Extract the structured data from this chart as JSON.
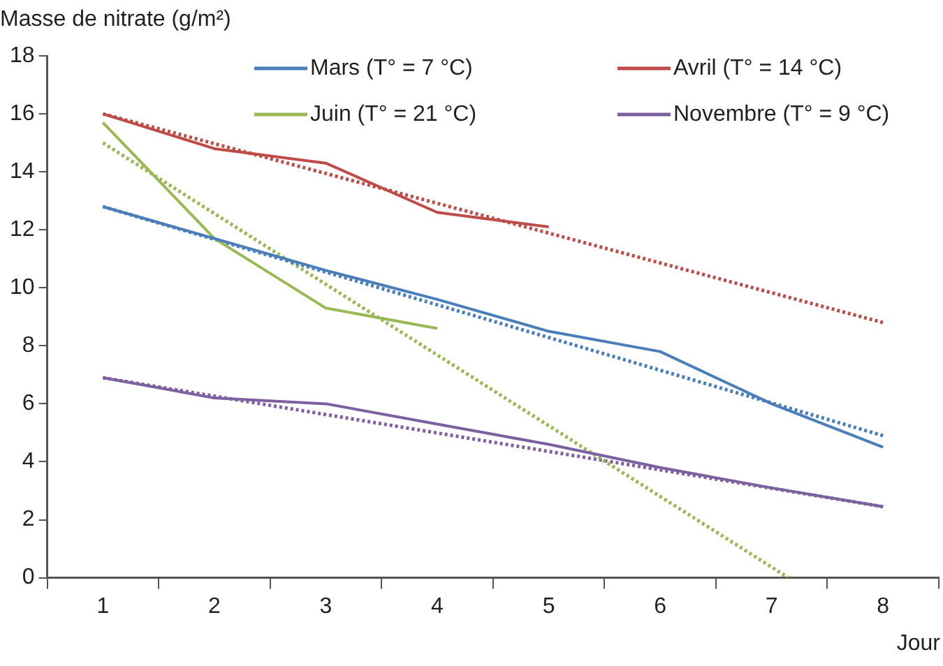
{
  "chart_data": {
    "type": "line",
    "ylabel": "Masse de nitrate (g/m²)",
    "xlabel": "Jour",
    "x": [
      1,
      2,
      3,
      4,
      5,
      6,
      7,
      8
    ],
    "xlim": [
      0.5,
      8.5
    ],
    "xticks": [
      {
        "value": 0.5,
        "label": null
      },
      1,
      {
        "value": 1.5,
        "label": null
      },
      2,
      {
        "value": 2.5,
        "label": null
      },
      3,
      {
        "value": 3.5,
        "label": null
      },
      4,
      {
        "value": 4.5,
        "label": null
      },
      5,
      {
        "value": 5.5,
        "label": null
      },
      6,
      {
        "value": 6.5,
        "label": null
      },
      7,
      {
        "value": 7.5,
        "label": null
      },
      8,
      {
        "value": 8.5,
        "label": null
      }
    ],
    "ylim": [
      0,
      18
    ],
    "yticks": [
      0,
      2,
      4,
      6,
      8,
      10,
      12,
      14,
      16,
      18
    ],
    "grid": false,
    "legend": "top right",
    "marker": "none",
    "series": [
      {
        "name": "Mars (T° = 7 °C)",
        "color": "#4a7ebb",
        "line_style": "solid",
        "values": [
          12.8,
          11.7,
          10.6,
          9.6,
          8.5,
          7.8,
          6.0,
          4.5
        ]
      },
      {
        "name": "Avril (T° = 14 °C)",
        "color": "#be4b48",
        "line_style": "solid",
        "values": [
          16.0,
          14.8,
          14.3,
          12.6,
          12.1,
          null,
          null,
          null
        ]
      },
      {
        "name": "Juin (T° = 21 °C)",
        "color": "#98b954",
        "line_style": "solid",
        "values": [
          15.7,
          11.7,
          9.3,
          8.6,
          null,
          null,
          null,
          null
        ]
      },
      {
        "name": "Novembre (T° = 9 °C)",
        "color": "#7d60a0",
        "line_style": "solid",
        "values": [
          6.9,
          6.2,
          6.0,
          5.3,
          4.6,
          3.8,
          3.1,
          2.45
        ]
      },
      {
        "type": "line",
        "color": "#4a7ebb",
        "line_style": "dotted",
        "x": [
          1,
          8
        ],
        "values": [
          12.8,
          4.9
        ]
      },
      {
        "type": "line",
        "color": "#be4b48",
        "line_style": "dotted",
        "x": [
          1,
          8
        ],
        "values": [
          16.0,
          8.8
        ]
      },
      {
        "type": "line",
        "color": "#98b954",
        "line_style": "dotted",
        "x": [
          1,
          7.15
        ],
        "values": [
          15.0,
          0
        ]
      },
      {
        "type": "line",
        "color": "#7d60a0",
        "line_style": "dotted",
        "x": [
          1,
          8
        ],
        "values": [
          6.9,
          2.45
        ]
      }
    ]
  }
}
